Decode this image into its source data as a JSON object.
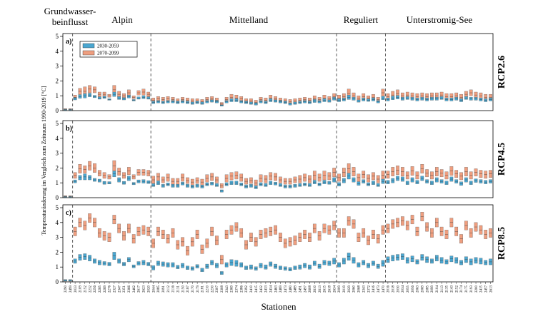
{
  "chart_data": {
    "type": "box",
    "xlabel": "Stationen",
    "ylabel": "Temperaturänderung im Vergleich zum Zeitraum 1990-2019 [°C]",
    "ylim": [
      0,
      5
    ],
    "yticks": [
      0,
      1,
      2,
      3,
      4,
      5
    ],
    "groups": [
      {
        "label": "Grundwasser-\nbeinflusst",
        "line1": "Grundwasser-",
        "line2": "beinflusst",
        "count": 2
      },
      {
        "label": "Alpin",
        "count": 16
      },
      {
        "label": "Mittelland",
        "count": 38
      },
      {
        "label": "Reguliert",
        "count": 10
      },
      {
        "label": "Unterstromig-See",
        "count": 22
      }
    ],
    "stations": [
      "2290",
      "2499",
      "2033",
      "2109",
      "2152",
      "2232",
      "2256",
      "2265",
      "2269",
      "2276",
      "2327",
      "2347",
      "2351",
      "2366",
      "2462",
      "2617",
      "2623",
      "2020",
      "2044",
      "2085",
      "2091",
      "2112",
      "2116",
      "2131",
      "2150",
      "2167",
      "2170",
      "2179",
      "2181",
      "2210",
      "2230",
      "2307",
      "2308",
      "2343",
      "2369",
      "2374",
      "2386",
      "2392",
      "2410",
      "2415",
      "2432",
      "2433",
      "2434",
      "2463",
      "2469",
      "2473",
      "2480",
      "2489",
      "2491",
      "2497",
      "2608",
      "2610",
      "2613",
      "2615",
      "2618",
      "2634",
      "2009",
      "2019",
      "2029",
      "2060",
      "2068",
      "2343",
      "2372",
      "2416",
      "2473",
      "2470",
      "2016",
      "2018",
      "2030",
      "2034",
      "2055",
      "2056",
      "2063",
      "2069",
      "2085",
      "2099",
      "2104",
      "2113",
      "2135",
      "2143",
      "2152",
      "2174",
      "2175",
      "2193",
      "2200",
      "2415",
      "2457",
      "2613"
    ],
    "legend": [
      {
        "label": "2030-2059",
        "color": "#4aa6d0"
      },
      {
        "label": "2070-2099",
        "color": "#ee9e7f"
      }
    ],
    "panels": [
      {
        "tag": "a)",
        "scenario": "RCP2.6",
        "p1": {
          "med": [
            0.05,
            0.05,
            0.8,
            0.95,
            1.0,
            1.05,
            0.95,
            0.85,
            0.9,
            0.75,
            1.1,
            0.85,
            0.8,
            0.95,
            0.7,
            0.85,
            0.9,
            0.85,
            0.55,
            0.6,
            0.55,
            0.6,
            0.6,
            0.55,
            0.6,
            0.55,
            0.5,
            0.55,
            0.5,
            0.6,
            0.65,
            0.6,
            0.35,
            0.6,
            0.7,
            0.7,
            0.6,
            0.55,
            0.5,
            0.45,
            0.6,
            0.55,
            0.7,
            0.65,
            0.6,
            0.55,
            0.45,
            0.5,
            0.55,
            0.6,
            0.55,
            0.65,
            0.6,
            0.7,
            0.65,
            0.8,
            0.7,
            0.75,
            0.9,
            0.8,
            0.65,
            0.75,
            0.7,
            0.75,
            0.6,
            0.85,
            0.75,
            0.85,
            0.9,
            0.8,
            0.85,
            0.8,
            0.75,
            0.8,
            0.75,
            0.8,
            0.8,
            0.85,
            0.75,
            0.75,
            0.8,
            0.7,
            0.85,
            0.8,
            0.8,
            0.75,
            0.7,
            0.75
          ],
          "hw": [
            0.03,
            0.03,
            0.08,
            0.12,
            0.15,
            0.12,
            0.08,
            0.08,
            0.08,
            0.05,
            0.15,
            0.1,
            0.08,
            0.1,
            0.05,
            0.08,
            0.1,
            0.08,
            0.08,
            0.08,
            0.08,
            0.08,
            0.08,
            0.08,
            0.08,
            0.08,
            0.08,
            0.08,
            0.08,
            0.08,
            0.08,
            0.08,
            0.05,
            0.08,
            0.1,
            0.1,
            0.08,
            0.08,
            0.08,
            0.08,
            0.08,
            0.08,
            0.1,
            0.08,
            0.08,
            0.08,
            0.08,
            0.08,
            0.08,
            0.08,
            0.08,
            0.1,
            0.08,
            0.1,
            0.08,
            0.1,
            0.1,
            0.1,
            0.15,
            0.1,
            0.08,
            0.1,
            0.08,
            0.1,
            0.08,
            0.12,
            0.1,
            0.12,
            0.12,
            0.1,
            0.1,
            0.1,
            0.1,
            0.1,
            0.1,
            0.1,
            0.1,
            0.1,
            0.1,
            0.1,
            0.1,
            0.1,
            0.1,
            0.1,
            0.1,
            0.1,
            0.1,
            0.1
          ]
        },
        "p2": {
          "med": [
            0.1,
            0.1,
            0.9,
            1.3,
            1.3,
            1.45,
            1.4,
            1.1,
            1.1,
            1.0,
            1.4,
            1.1,
            1.0,
            1.2,
            0.9,
            1.2,
            1.25,
            1.1,
            0.7,
            0.8,
            0.75,
            0.8,
            0.75,
            0.65,
            0.75,
            0.7,
            0.65,
            0.65,
            0.6,
            0.75,
            0.8,
            0.7,
            0.45,
            0.75,
            0.9,
            0.85,
            0.8,
            0.65,
            0.65,
            0.55,
            0.75,
            0.7,
            0.85,
            0.8,
            0.7,
            0.65,
            0.6,
            0.65,
            0.7,
            0.75,
            0.7,
            0.8,
            0.75,
            0.85,
            0.8,
            0.95,
            0.85,
            0.95,
            1.15,
            1.0,
            0.85,
            0.95,
            0.85,
            0.9,
            0.75,
            1.2,
            0.95,
            1.05,
            1.15,
            1.0,
            1.05,
            1.0,
            0.95,
            1.0,
            0.95,
            1.0,
            1.0,
            1.05,
            0.95,
            0.95,
            1.0,
            0.9,
            1.1,
            1.2,
            1.05,
            1.0,
            0.9,
            0.9
          ],
          "hw": [
            0.03,
            0.03,
            0.15,
            0.2,
            0.3,
            0.25,
            0.2,
            0.15,
            0.15,
            0.1,
            0.3,
            0.2,
            0.15,
            0.2,
            0.1,
            0.15,
            0.2,
            0.15,
            0.15,
            0.15,
            0.15,
            0.15,
            0.15,
            0.15,
            0.15,
            0.15,
            0.15,
            0.15,
            0.15,
            0.15,
            0.15,
            0.15,
            0.1,
            0.15,
            0.2,
            0.2,
            0.15,
            0.15,
            0.15,
            0.15,
            0.15,
            0.15,
            0.2,
            0.15,
            0.15,
            0.15,
            0.15,
            0.15,
            0.15,
            0.15,
            0.15,
            0.2,
            0.15,
            0.2,
            0.15,
            0.2,
            0.2,
            0.2,
            0.3,
            0.2,
            0.15,
            0.2,
            0.15,
            0.2,
            0.15,
            0.25,
            0.2,
            0.25,
            0.25,
            0.2,
            0.2,
            0.2,
            0.2,
            0.2,
            0.2,
            0.2,
            0.2,
            0.2,
            0.2,
            0.2,
            0.2,
            0.2,
            0.2,
            0.2,
            0.2,
            0.2,
            0.2,
            0.2
          ]
        }
      },
      {
        "tag": "b)",
        "scenario": "RCP4.5",
        "p1": {
          "med": [
            0.05,
            0.05,
            1.1,
            1.35,
            1.4,
            1.35,
            1.2,
            1.15,
            1.0,
            1.0,
            1.6,
            1.2,
            1.0,
            1.3,
            0.95,
            1.1,
            1.1,
            1.05,
            0.85,
            1.0,
            0.8,
            0.9,
            0.8,
            0.8,
            0.95,
            0.8,
            0.75,
            0.8,
            0.75,
            0.9,
            0.95,
            0.85,
            0.45,
            0.9,
            1.0,
            1.0,
            0.9,
            0.75,
            0.8,
            0.7,
            0.9,
            0.85,
            1.0,
            0.95,
            0.85,
            0.75,
            0.75,
            0.8,
            0.85,
            0.9,
            0.85,
            1.05,
            0.9,
            1.05,
            1.0,
            1.2,
            0.9,
            1.15,
            1.45,
            1.2,
            0.95,
            1.1,
            0.9,
            1.0,
            0.85,
            1.1,
            1.05,
            1.15,
            1.3,
            1.25,
            1.0,
            1.2,
            1.05,
            1.3,
            1.1,
            1.0,
            1.2,
            1.1,
            1.0,
            1.25,
            1.1,
            0.95,
            1.2,
            1.0,
            1.15,
            1.1,
            1.05,
            1.1
          ],
          "hw": [
            0.03,
            0.03,
            0.1,
            0.15,
            0.2,
            0.15,
            0.1,
            0.1,
            0.1,
            0.08,
            0.2,
            0.15,
            0.1,
            0.15,
            0.08,
            0.1,
            0.12,
            0.1,
            0.1,
            0.12,
            0.1,
            0.1,
            0.1,
            0.1,
            0.1,
            0.1,
            0.1,
            0.1,
            0.1,
            0.1,
            0.1,
            0.1,
            0.08,
            0.1,
            0.12,
            0.12,
            0.1,
            0.1,
            0.1,
            0.1,
            0.1,
            0.1,
            0.12,
            0.1,
            0.1,
            0.1,
            0.1,
            0.1,
            0.1,
            0.1,
            0.1,
            0.12,
            0.1,
            0.12,
            0.1,
            0.15,
            0.12,
            0.15,
            0.2,
            0.15,
            0.12,
            0.12,
            0.1,
            0.12,
            0.1,
            0.15,
            0.12,
            0.15,
            0.15,
            0.15,
            0.12,
            0.15,
            0.12,
            0.15,
            0.12,
            0.12,
            0.15,
            0.12,
            0.12,
            0.15,
            0.12,
            0.12,
            0.15,
            0.12,
            0.12,
            0.12,
            0.12,
            0.12
          ]
        },
        "p2": {
          "med": [
            0.1,
            0.1,
            1.5,
            1.95,
            1.9,
            2.15,
            2.0,
            1.65,
            1.5,
            1.4,
            2.15,
            1.75,
            1.5,
            1.8,
            1.4,
            1.7,
            1.7,
            1.65,
            1.2,
            1.4,
            1.2,
            1.35,
            1.1,
            1.1,
            1.35,
            1.15,
            1.05,
            1.15,
            1.05,
            1.3,
            1.4,
            1.2,
            0.8,
            1.3,
            1.45,
            1.5,
            1.35,
            1.1,
            1.15,
            1.0,
            1.3,
            1.25,
            1.45,
            1.4,
            1.2,
            1.1,
            1.1,
            1.2,
            1.25,
            1.35,
            1.25,
            1.5,
            1.35,
            1.5,
            1.45,
            1.7,
            1.35,
            1.7,
            1.95,
            1.75,
            1.35,
            1.55,
            1.3,
            1.45,
            1.25,
            1.5,
            1.55,
            1.75,
            1.85,
            1.75,
            1.5,
            1.8,
            1.5,
            1.95,
            1.65,
            1.5,
            1.75,
            1.65,
            1.5,
            1.8,
            1.6,
            1.45,
            1.75,
            1.5,
            1.7,
            1.6,
            1.55,
            1.6
          ],
          "hw": [
            0.03,
            0.03,
            0.2,
            0.3,
            0.25,
            0.3,
            0.3,
            0.2,
            0.2,
            0.15,
            0.35,
            0.25,
            0.2,
            0.25,
            0.15,
            0.2,
            0.2,
            0.2,
            0.25,
            0.25,
            0.2,
            0.25,
            0.2,
            0.2,
            0.25,
            0.2,
            0.2,
            0.2,
            0.2,
            0.25,
            0.25,
            0.2,
            0.15,
            0.25,
            0.25,
            0.25,
            0.25,
            0.2,
            0.2,
            0.2,
            0.25,
            0.25,
            0.25,
            0.25,
            0.2,
            0.2,
            0.2,
            0.2,
            0.25,
            0.25,
            0.25,
            0.3,
            0.25,
            0.3,
            0.25,
            0.3,
            0.25,
            0.3,
            0.35,
            0.3,
            0.25,
            0.25,
            0.25,
            0.25,
            0.25,
            0.3,
            0.25,
            0.3,
            0.3,
            0.3,
            0.25,
            0.3,
            0.25,
            0.3,
            0.25,
            0.25,
            0.3,
            0.25,
            0.25,
            0.3,
            0.25,
            0.25,
            0.3,
            0.25,
            0.25,
            0.25,
            0.25,
            0.25
          ]
        }
      },
      {
        "tag": "c)",
        "scenario": "RCP8.5",
        "p1": {
          "med": [
            0.1,
            0.1,
            1.4,
            1.65,
            1.7,
            1.6,
            1.4,
            1.3,
            1.25,
            1.2,
            1.75,
            1.4,
            1.2,
            1.5,
            1.05,
            1.25,
            1.3,
            1.2,
            0.95,
            1.25,
            1.2,
            1.15,
            1.15,
            1.0,
            1.1,
            0.95,
            0.9,
            1.05,
            0.8,
            1.05,
            1.3,
            1.1,
            0.6,
            1.15,
            1.3,
            1.25,
            1.15,
            0.95,
            1.0,
            0.9,
            1.1,
            1.0,
            1.2,
            1.05,
            0.95,
            0.9,
            0.85,
            0.95,
            1.0,
            1.1,
            1.0,
            1.25,
            1.05,
            1.3,
            1.25,
            1.4,
            1.15,
            1.4,
            1.7,
            1.45,
            1.15,
            1.3,
            1.1,
            1.25,
            1.05,
            1.25,
            1.5,
            1.6,
            1.65,
            1.7,
            1.45,
            1.55,
            1.35,
            1.65,
            1.5,
            1.4,
            1.6,
            1.45,
            1.35,
            1.55,
            1.45,
            1.3,
            1.5,
            1.35,
            1.45,
            1.4,
            1.3,
            1.35
          ],
          "hw": [
            0.05,
            0.05,
            0.15,
            0.2,
            0.2,
            0.2,
            0.15,
            0.15,
            0.12,
            0.12,
            0.25,
            0.15,
            0.12,
            0.15,
            0.1,
            0.12,
            0.15,
            0.12,
            0.15,
            0.15,
            0.15,
            0.15,
            0.15,
            0.12,
            0.15,
            0.12,
            0.12,
            0.12,
            0.12,
            0.15,
            0.15,
            0.15,
            0.1,
            0.15,
            0.2,
            0.2,
            0.15,
            0.12,
            0.15,
            0.12,
            0.15,
            0.15,
            0.15,
            0.15,
            0.12,
            0.12,
            0.12,
            0.12,
            0.15,
            0.15,
            0.15,
            0.15,
            0.15,
            0.15,
            0.15,
            0.2,
            0.15,
            0.2,
            0.25,
            0.2,
            0.15,
            0.15,
            0.15,
            0.15,
            0.15,
            0.2,
            0.2,
            0.2,
            0.2,
            0.2,
            0.2,
            0.2,
            0.15,
            0.2,
            0.2,
            0.15,
            0.2,
            0.2,
            0.15,
            0.2,
            0.2,
            0.15,
            0.2,
            0.2,
            0.2,
            0.2,
            0.15,
            0.2
          ],
          "box_med": [
            0.1,
            0.1,
            3.4,
            4.0,
            3.8,
            4.3,
            4.0,
            3.3,
            3.1,
            3.0,
            4.2,
            3.6,
            3.1,
            3.6,
            2.9,
            3.4,
            3.5,
            3.4,
            2.6,
            3.4,
            3.2,
            2.9,
            3.3,
            2.5,
            2.7,
            2.1,
            2.7,
            3.2,
            2.2,
            2.6,
            3.4,
            2.8,
            1.5,
            3.2,
            3.5,
            3.7,
            3.3,
            2.5,
            3.0,
            2.7,
            3.2,
            3.3,
            3.4,
            3.5,
            3.0,
            2.6,
            2.7,
            2.8,
            3.0,
            3.2,
            3.0,
            3.6,
            3.1,
            3.6,
            3.5,
            3.8,
            3.3,
            3.3,
            4.1,
            3.9,
            3.0,
            3.3,
            2.8,
            3.2,
            2.9,
            3.5,
            3.6,
            3.9,
            4.0,
            4.1,
            3.8,
            4.2,
            3.4,
            4.4,
            3.7,
            3.3,
            4.0,
            3.4,
            3.2,
            4.0,
            3.4,
            2.9,
            3.8,
            3.3,
            3.7,
            3.5,
            3.2,
            3.3
          ]
        }
      }
    ]
  }
}
